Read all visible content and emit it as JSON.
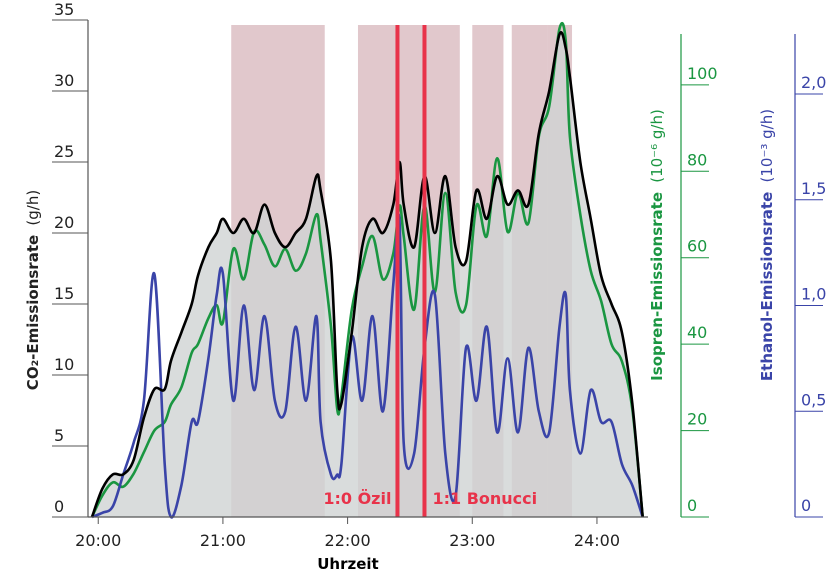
{
  "chart_data": {
    "type": "area",
    "xlabel": "Uhrzeit",
    "x_ticks": [
      "20:00",
      "21:00",
      "22:00",
      "23:00",
      "24:00"
    ],
    "y_axes": [
      {
        "id": "co2",
        "label_bold": "CO₂-Emissionsrate",
        "label_unit": "(g/h)",
        "ticks": [
          "0",
          "5",
          "10",
          "15",
          "20",
          "25",
          "30",
          "35"
        ],
        "range": [
          0,
          35
        ],
        "color": "#000000"
      },
      {
        "id": "isopren",
        "label_bold": "Isopren-Emissionsrate",
        "label_unit": "(10⁻⁶ g/h)",
        "ticks": [
          "0",
          "20",
          "40",
          "60",
          "80",
          "100"
        ],
        "range": [
          0,
          115
        ],
        "color": "#1a9641"
      },
      {
        "id": "ethanol",
        "label_bold": "Ethanol-Emissionsrate",
        "label_unit": "(10⁻³ g/h)",
        "ticks": [
          "0",
          "0,5",
          "1,0",
          "1,5",
          "2,0"
        ],
        "range": [
          0,
          2.35
        ],
        "color": "#3a44a8"
      }
    ],
    "shaded_periods": [
      [
        "21:04",
        "21:49"
      ],
      [
        "22:05",
        "22:54"
      ],
      [
        "23:00",
        "23:15"
      ],
      [
        "23:19",
        "23:36"
      ],
      [
        "23:36",
        "23:48"
      ]
    ],
    "events": [
      {
        "time": "22:24",
        "label": "1:0 Özil",
        "color": "#e8334a"
      },
      {
        "time": "22:37",
        "label": "1:1 Bonucci",
        "color": "#e8334a"
      }
    ],
    "series": [
      {
        "axis": "co2",
        "color": "#000000",
        "fill": "#d0d3d3",
        "x": [
          "19:57",
          "20:02",
          "20:07",
          "20:12",
          "20:17",
          "20:22",
          "20:27",
          "20:32",
          "20:35",
          "20:40",
          "20:45",
          "20:48",
          "20:53",
          "20:57",
          "21:00",
          "21:05",
          "21:10",
          "21:15",
          "21:20",
          "21:25",
          "21:30",
          "21:35",
          "21:40",
          "21:45",
          "21:47",
          "21:52",
          "21:55",
          "21:57",
          "22:02",
          "22:07",
          "22:12",
          "22:17",
          "22:22",
          "22:25",
          "22:27",
          "22:32",
          "22:37",
          "22:42",
          "22:47",
          "22:52",
          "22:57",
          "23:02",
          "23:07",
          "23:12",
          "23:17",
          "23:22",
          "23:27",
          "23:32",
          "23:37",
          "23:42",
          "23:45",
          "23:47",
          "23:52",
          "23:57",
          "24:02",
          "24:07",
          "24:12",
          "24:17",
          "24:22"
        ],
        "values": [
          0,
          2,
          3,
          3,
          4,
          7,
          9,
          9,
          11,
          13,
          15,
          17,
          19,
          20,
          21,
          20,
          21,
          20,
          22,
          20,
          19,
          20,
          21,
          24,
          23,
          18,
          9,
          8,
          13,
          19,
          21,
          20,
          22,
          25,
          22,
          19,
          24,
          20,
          24,
          19,
          18,
          23,
          21,
          24,
          22,
          23,
          22,
          27,
          30,
          34,
          33,
          31,
          25,
          21,
          17,
          15,
          13,
          8,
          0
        ]
      },
      {
        "axis": "isopren",
        "color": "#1a9641",
        "x": [
          "19:57",
          "20:02",
          "20:07",
          "20:12",
          "20:17",
          "20:22",
          "20:27",
          "20:32",
          "20:35",
          "20:40",
          "20:45",
          "20:48",
          "20:53",
          "20:57",
          "21:00",
          "21:05",
          "21:10",
          "21:15",
          "21:20",
          "21:25",
          "21:30",
          "21:35",
          "21:40",
          "21:45",
          "21:47",
          "21:52",
          "21:55",
          "21:57",
          "22:02",
          "22:07",
          "22:12",
          "22:17",
          "22:22",
          "22:25",
          "22:27",
          "22:32",
          "22:37",
          "22:42",
          "22:47",
          "22:52",
          "22:57",
          "23:02",
          "23:07",
          "23:12",
          "23:17",
          "23:22",
          "23:27",
          "23:32",
          "23:37",
          "23:42",
          "23:45",
          "23:47",
          "23:52",
          "23:57",
          "24:02",
          "24:07",
          "24:12",
          "24:17",
          "24:22"
        ],
        "values": [
          0,
          5,
          8,
          7,
          10,
          15,
          20,
          22,
          26,
          30,
          38,
          40,
          46,
          49,
          45,
          62,
          55,
          66,
          63,
          58,
          62,
          57,
          61,
          70,
          64,
          44,
          25,
          28,
          48,
          58,
          65,
          55,
          61,
          72,
          65,
          48,
          72,
          52,
          75,
          52,
          49,
          72,
          65,
          83,
          66,
          75,
          68,
          88,
          95,
          113,
          110,
          88,
          70,
          57,
          50,
          40,
          36,
          25,
          0
        ]
      },
      {
        "axis": "ethanol",
        "color": "#3a44a8",
        "x": [
          "19:57",
          "20:02",
          "20:07",
          "20:12",
          "20:17",
          "20:22",
          "20:27",
          "20:32",
          "20:35",
          "20:40",
          "20:45",
          "20:48",
          "20:53",
          "20:57",
          "21:00",
          "21:05",
          "21:10",
          "21:15",
          "21:20",
          "21:25",
          "21:30",
          "21:35",
          "21:40",
          "21:45",
          "21:47",
          "21:52",
          "21:55",
          "21:57",
          "22:02",
          "22:07",
          "22:12",
          "22:17",
          "22:22",
          "22:25",
          "22:27",
          "22:32",
          "22:37",
          "22:42",
          "22:47",
          "22:52",
          "22:57",
          "23:02",
          "23:07",
          "23:12",
          "23:17",
          "23:22",
          "23:27",
          "23:32",
          "23:37",
          "23:42",
          "23:45",
          "23:47",
          "23:52",
          "23:57",
          "24:02",
          "24:07",
          "24:12",
          "24:17",
          "24:22"
        ],
        "values": [
          0,
          0.02,
          0.05,
          0.2,
          0.35,
          0.55,
          1.15,
          0.25,
          0,
          0.15,
          0.45,
          0.45,
          0.75,
          1.05,
          1.15,
          0.55,
          1.0,
          0.6,
          0.95,
          0.55,
          0.5,
          0.9,
          0.55,
          0.95,
          0.45,
          0.2,
          0.2,
          0.25,
          0.85,
          0.55,
          0.95,
          0.5,
          1.1,
          1.4,
          0.35,
          0.3,
          0.8,
          1.05,
          0.3,
          0.1,
          0.8,
          0.55,
          0.9,
          0.4,
          0.75,
          0.4,
          0.8,
          0.5,
          0.4,
          0.9,
          1.05,
          0.6,
          0.3,
          0.6,
          0.45,
          0.45,
          0.25,
          0.15,
          0
        ]
      }
    ]
  }
}
